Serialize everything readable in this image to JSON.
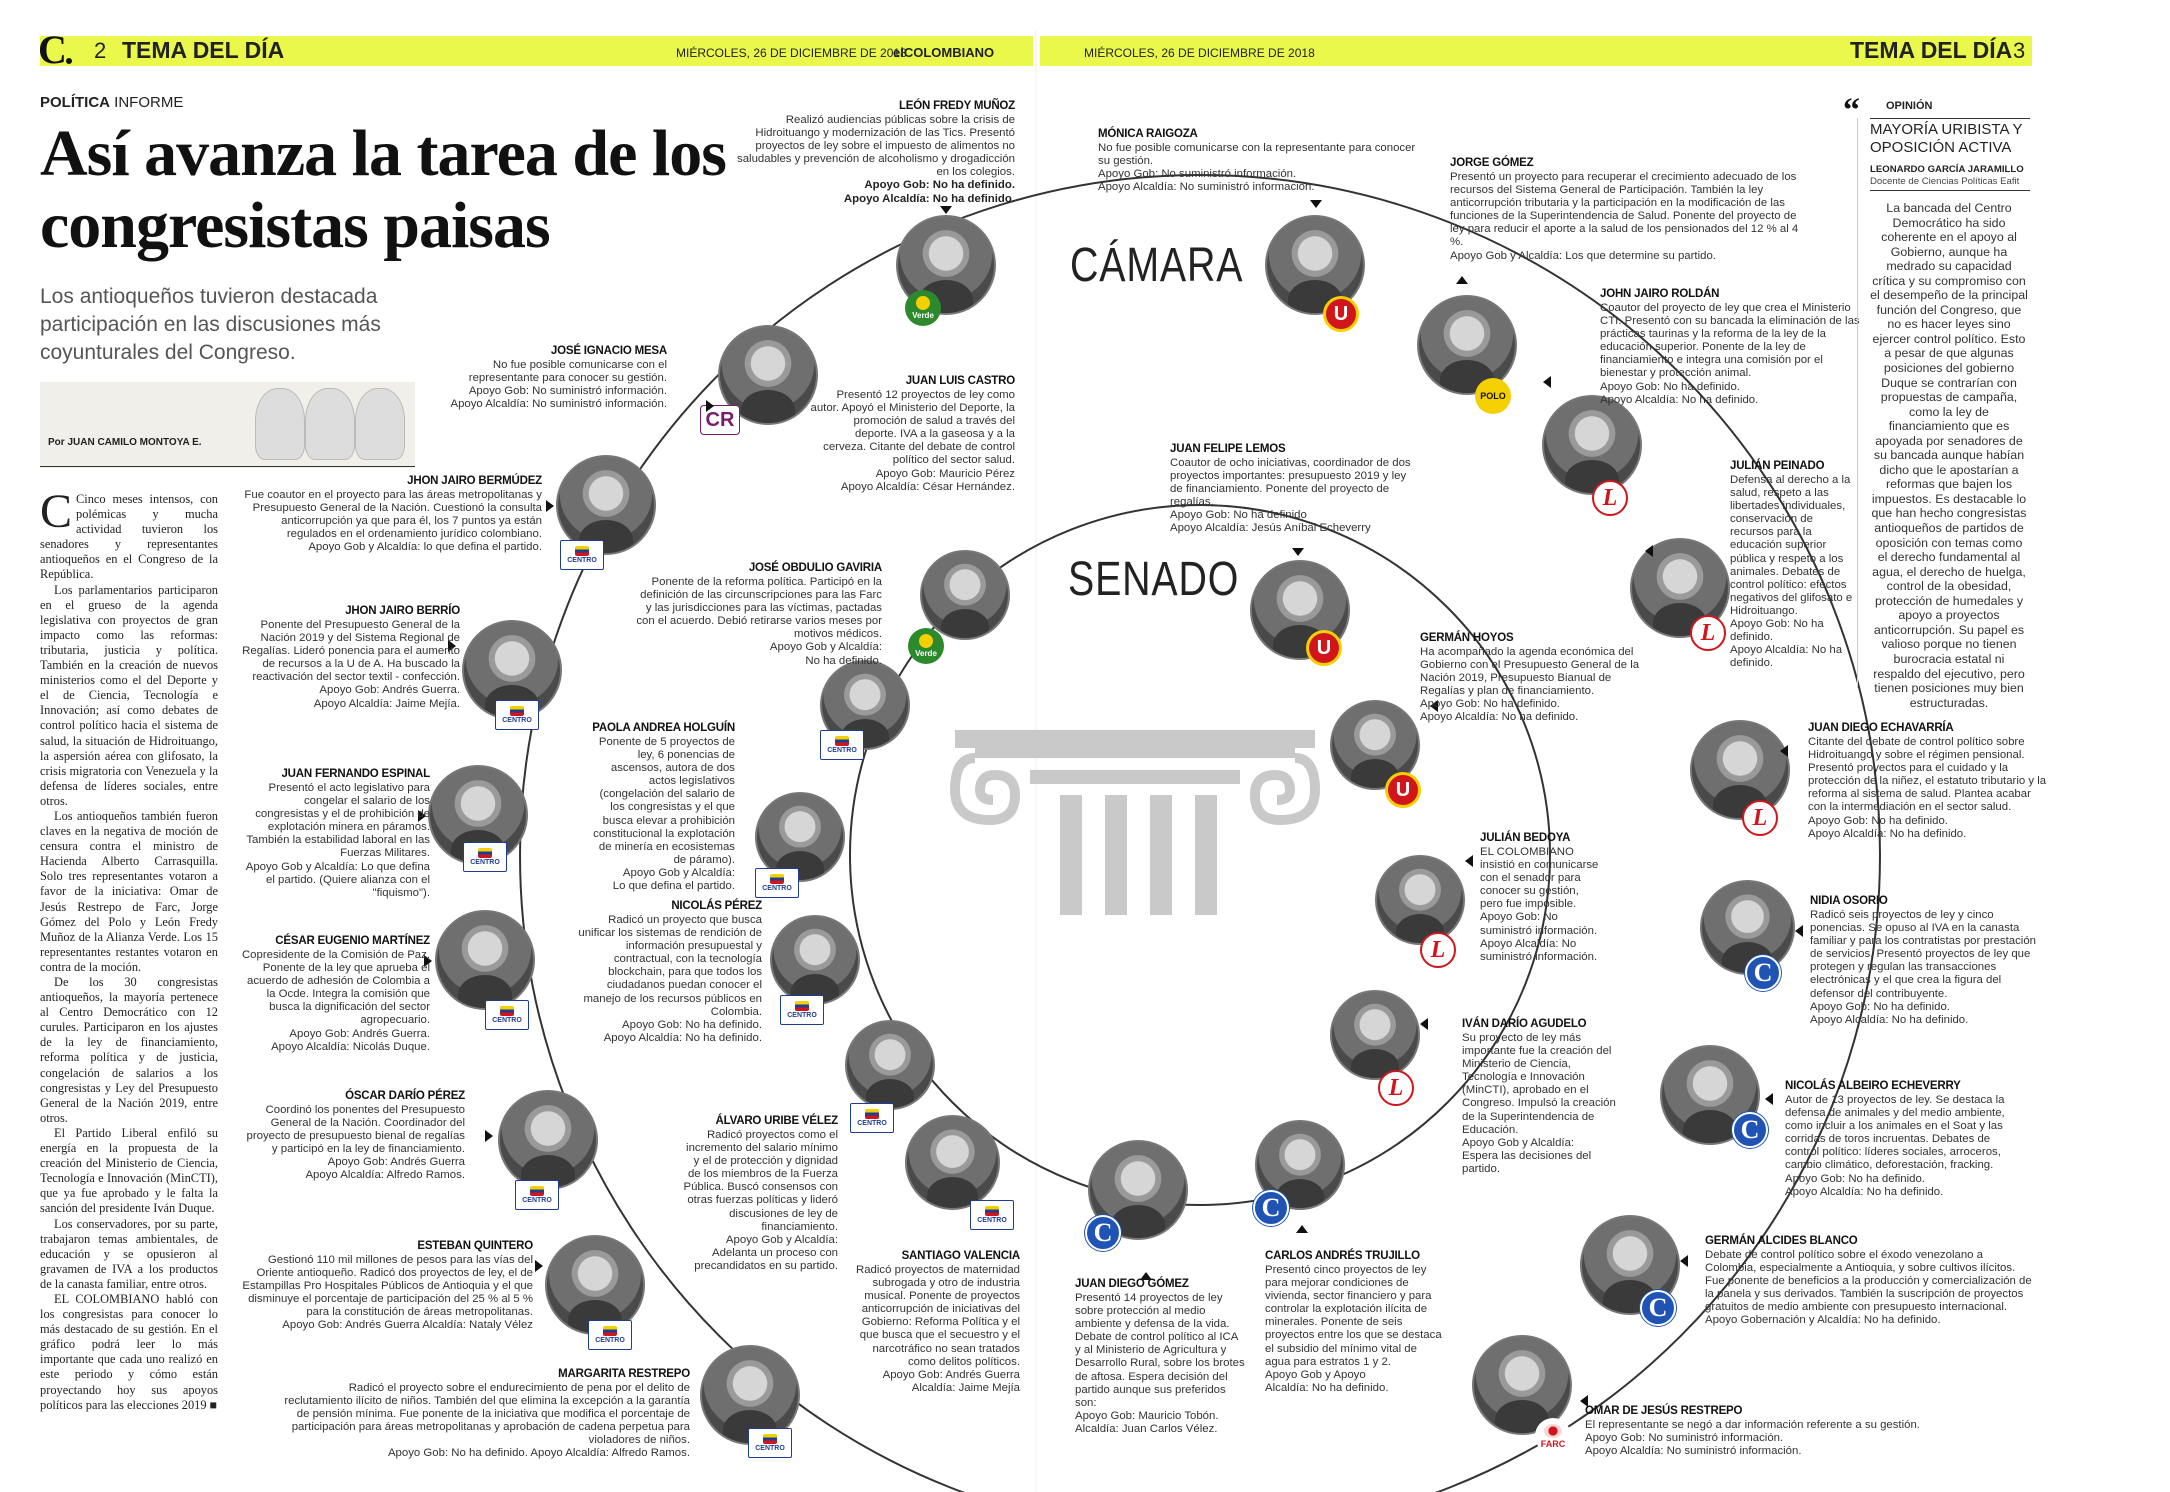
{
  "header": {
    "logo": "C",
    "left_page": "2",
    "left_section": "TEMA DEL DÍA",
    "left_date": "MIÉRCOLES, 26 DE DICIEMBRE DE 2018",
    "brand": "elCOLOMBIANO",
    "right_date": "MIÉRCOLES, 26 DE DICIEMBRE DE 2018",
    "right_section": "TEMA DEL DÍA",
    "right_page": "3"
  },
  "intro": {
    "kicker_section": "POLÍTICA",
    "kicker_type": "INFORME",
    "headline": "Así avanza la tarea de los congresistas paisas",
    "subtitle": "Los antioqueños tuvieron destacada participación en las discusiones más coyunturales del Congreso.",
    "byline": "Por JUAN CAMILO MONTOYA E.",
    "body": [
      "Cinco meses intensos, con polémicas y mucha actividad tuvieron los senadores y representantes antioqueños en el Congreso de la República.",
      "Los parlamentarios participaron en el grueso de la agenda legislativa con proyectos de gran impacto como las reformas: tributaria, justicia y política. También en la creación de nuevos ministerios como el del Deporte y el de Ciencia, Tecnología e Innovación; así como debates de control político hacia el sistema de salud, la situación de Hidroituango, la aspersión aérea con glifosato, la crisis migratoria con Venezuela y la defensa de líderes sociales, entre otros.",
      "Los antioqueños también fueron claves en la negativa de moción de censura contra el ministro de Hacienda Alberto Carrasquilla. Solo tres representantes votaron a favor de la iniciativa: Omar de Jesús Restrepo de Farc, Jorge Gómez del Polo y León Fredy Muñoz de la Alianza Verde. Los 15 representantes restantes votaron en contra de la moción.",
      "De los 30 congresistas antioqueños, la mayoría pertenece al Centro Democrático con 12 curules. Participaron en los ajustes de la ley de financiamiento, reforma política y de justicia, congelación de salarios a los congresistas y Ley del Presupuesto General de la Nación 2019, entre otros.",
      "El Partido Liberal enfiló su energía en la propuesta de la creación del Ministerio de Ciencia, Tecnología e Innovación (MinCTI), que ya fue aprobado y le falta la sanción del presidente Iván Duque.",
      "Los conservadores, por su parte, trabajaron temas ambientales, de educación y se opusieron al gravamen de IVA a los productos de la canasta familiar, entre otros.",
      "EL COLOMBIANO habló con los congresistas para conocer lo más destacado de su gestión. En el gráfico podrá leer lo más importante que cada uno realizó en este periodo y cómo están proyectando hoy sus apoyos políticos para las elecciones 2019 ■"
    ]
  },
  "labels": {
    "camara": "CÁMARA",
    "senado": "SENADO"
  },
  "profiles": [
    {
      "name": "LEÓN FREDY MUÑOZ",
      "desc": "Realizó audiencias públicas sobre la crisis de Hidroituango y modernización de las Tics. Presentó proyectos de ley sobre el impuesto de alimentos no saludables y prevención de alcoholismo y drogadicción en los colegios.",
      "gov": "Apoyo Gob: No ha definido.",
      "alc": "Apoyo Alcaldía: No ha definido.",
      "party": "Verde"
    },
    {
      "name": "MÓNICA RAIGOZA",
      "desc": "No fue posible comunicarse con la representante para conocer su gestión.",
      "gov": "Apoyo Gob: No suministró información.",
      "alc": "Apoyo Alcaldía: No suministró información.",
      "party": "U"
    },
    {
      "name": "JORGE GÓMEZ",
      "desc": "Presentó un proyecto para recuperar el crecimiento adecuado de los recursos del Sistema General de Participación. También la ley anticorrupción tributaria y la participación en la modificación de las funciones de la Superintendencia de Salud. Ponente del proyecto de ley para reducir el aporte a la salud de los pensionados del 12 % al 4 %.",
      "gov": "Apoyo Gob y Alcaldía: Los que determine su partido.",
      "alc": "",
      "party": "POLO"
    },
    {
      "name": "JOSÉ IGNACIO MESA",
      "desc": "No fue posible comunicarse con el representante para conocer su gestión.",
      "gov": "Apoyo Gob: No suministró información.",
      "alc": "Apoyo Alcaldía: No suministró información.",
      "party": "CR"
    },
    {
      "name": "JUAN LUIS CASTRO",
      "desc": "Presentó 12 proyectos de ley como autor. Apoyó el Ministerio del Deporte, la promoción de salud a través del deporte. IVA a la gaseosa y a la cerveza. Citante del debate de control político del sector salud.",
      "gov": "Apoyo Gob: Mauricio Pérez",
      "alc": "Apoyo Alcaldía: César Hernández.",
      "party": "Verde"
    },
    {
      "name": "JOHN JAIRO ROLDÁN",
      "desc": "Coautor del proyecto de ley que crea el Ministerio CTI. Presentó con su bancada la eliminación de las prácticas taurinas y la reforma de la ley de la educación superior. Ponente de la ley de financiamiento e integra una comisión por el bienestar y protección animal.",
      "gov": "Apoyo Gob: No ha definido.",
      "alc": "Apoyo Alcaldía: No ha definido.",
      "party": "L"
    },
    {
      "name": "JHON JAIRO BERMÚDEZ",
      "desc": "Fue coautor en el proyecto para las áreas metropolitanas y Presupuesto General de la Nación. Cuestionó la consulta anticorrupción ya que para él, los 7 puntos ya están regulados en el ordenamiento jurídico colombiano.",
      "gov": "Apoyo Gob y Alcaldía: lo que defina el partido.",
      "alc": "",
      "party": "CENTRO"
    },
    {
      "name": "JUAN FELIPE LEMOS",
      "desc": "Coautor de ocho iniciativas, coordinador de dos proyectos importantes: presupuesto 2019 y ley de financiamiento. Ponente del proyecto de regalías.",
      "gov": "Apoyo Gob: No ha definido",
      "alc": "Apoyo Alcaldía: Jesús Aníbal Echeverry",
      "party": "U"
    },
    {
      "name": "JULIÁN PEINADO",
      "desc": "Defensa al derecho a la salud, respeto a las libertades individuales, conservación de recursos para la educación superior pública y respeto a los animales. Debates de control político: efectos negativos del glifosato e Hidroituango.",
      "gov": "Apoyo Gob: No ha definido.",
      "alc": "Apoyo Alcaldía: No ha definido.",
      "party": "L"
    },
    {
      "name": "JHON JAIRO BERRÍO",
      "desc": "Ponente del Presupuesto General de la Nación 2019 y del Sistema Regional de Regalías. Lideró ponencia para el aumento de recursos a la U de A. Ha buscado la reactivación del sector textil - confección.",
      "gov": "Apoyo Gob: Andrés Guerra.",
      "alc": "Apoyo Alcaldía: Jaime Mejía.",
      "party": "CENTRO"
    },
    {
      "name": "JOSÉ OBDULIO GAVIRIA",
      "desc": "Ponente de la reforma política. Participó en la definición de las circunscripciones para las Farc y las jurisdicciones para las víctimas, pactadas con el acuerdo. Debió retirarse varios meses por motivos médicos.",
      "gov": "Apoyo Gob y Alcaldía:",
      "alc": "No ha definido.",
      "party": "CENTRO"
    },
    {
      "name": "GERMÁN HOYOS",
      "desc": "Ha acompañado la agenda económica del Gobierno con el Presupuesto General de la Nación 2019, Presupuesto Bianual de Regalías y plan de financiamiento.",
      "gov": "Apoyo Gob: No ha definido.",
      "alc": "Apoyo Alcaldía: No ha definido.",
      "party": "U"
    },
    {
      "name": "JUAN DIEGO ECHAVARRÍA",
      "desc": "Citante del debate de control político sobre Hidroituango y sobre el régimen pensional. Presentó proyectos para el cuidado y la protección de la niñez, el estatuto tributario y la reforma al sistema de salud. Plantea acabar con la intermediación en el sector salud.",
      "gov": "Apoyo Gob: No ha definido.",
      "alc": "Apoyo Alcaldía: No ha definido.",
      "party": "L"
    },
    {
      "name": "JUAN FERNANDO ESPINAL",
      "desc": "Presentó el acto legislativo para congelar el salario de los congresistas y el de prohibición de explotación minera en páramos. También la estabilidad laboral en las Fuerzas Militares.",
      "gov": "Apoyo Gob y Alcaldía: Lo que defina el partido. (Quiere alianza con el \"fiquismo\").",
      "alc": "",
      "party": "CENTRO"
    },
    {
      "name": "PAOLA ANDREA HOLGUÍN",
      "desc": "Ponente de 5 proyectos de ley, 6 ponencias de ascensos, autora de dos actos legislativos (congelación del salario de los congresistas y el que busca elevar a prohibición constitucional la explotación de minería en ecosistemas de páramo).",
      "gov": "Apoyo Gob y Alcaldía:",
      "alc": "Lo que defina el partido.",
      "party": "CENTRO"
    },
    {
      "name": "JULIÁN BEDOYA",
      "desc": "EL COLOMBIANO insistió en comunicarse con el senador para conocer su gestión, pero fue imposible.",
      "gov": "Apoyo Gob: No suministró información.",
      "alc": "Apoyo Alcaldía: No suministró información.",
      "party": "L"
    },
    {
      "name": "NIDIA OSORIO",
      "desc": "Radicó seis proyectos de ley y cinco ponencias. Se opuso al IVA en la canasta familiar y para los contratistas por prestación de servicios. Presentó proyectos de ley que protegen y regulan las transacciones electrónicas y el que crea la figura del defensor del contribuyente.",
      "gov": "Apoyo Gob: No ha definido.",
      "alc": "Apoyo Alcaldía: No ha definido.",
      "party": "C"
    },
    {
      "name": "CÉSAR EUGENIO MARTÍNEZ",
      "desc": "Copresidente de la Comisión de Paz. Ponente de la ley que aprueba el acuerdo de adhesión de Colombia a la Ocde. Integra la comisión que busca la dignificación del sector agropecuario.",
      "gov": "Apoyo Gob: Andrés Guerra.",
      "alc": "Apoyo Alcaldía: Nicolás Duque.",
      "party": "CENTRO"
    },
    {
      "name": "NICOLÁS PÉREZ",
      "desc": "Radicó un proyecto que busca unificar los sistemas de rendición de información presupuestal y contractual, con la tecnología blockchain, para que todos los ciudadanos puedan conocer el manejo de los recursos públicos en Colombia.",
      "gov": "Apoyo Gob: No ha definido.",
      "alc": "Apoyo Alcaldía: No ha definido.",
      "party": "CENTRO"
    },
    {
      "name": "IVÁN DARÍO AGUDELO",
      "desc": "Su proyecto de ley más importante fue la creación del Ministerio de Ciencia, Tecnología e Innovación (MinCTI), aprobado en el Congreso. Impulsó la creación de la Superintendencia de Educación.",
      "gov": "Apoyo Gob y Alcaldía:",
      "alc": "Espera las decisiones del partido.",
      "party": "L"
    },
    {
      "name": "NICOLÁS ALBEIRO ECHEVERRY",
      "desc": "Autor de 13 proyectos de ley. Se destaca la defensa de animales y del medio ambiente, como incluir a los animales en el Soat y las corridas de toros incruentas. Debates de control político: líderes sociales, arroceros, cambio climático, deforestación, fracking.",
      "gov": "Apoyo Gob: No ha definido.",
      "alc": "Apoyo Alcaldía: No ha definido.",
      "party": "C"
    },
    {
      "name": "ÁLVARO URIBE VÉLEZ",
      "desc": "Radicó proyectos como el incremento del salario mínimo y el de protección y dignidad de los miembros de la Fuerza Pública. Buscó consensos con otras fuerzas políticas y lideró discusiones de ley de financiamiento.",
      "gov": "Apoyo Gob y Alcaldía:",
      "alc": "Adelanta un proceso con precandidatos en su partido.",
      "party": "CENTRO"
    },
    {
      "name": "ÓSCAR DARÍO PÉREZ",
      "desc": "Coordinó los ponentes del Presupuesto General de la Nación. Coordinador del proyecto de presupuesto bienal de regalías y participó en la ley de financiamiento.",
      "gov": "Apoyo Gob: Andrés Guerra",
      "alc": "Apoyo Alcaldía: Alfredo Ramos.",
      "party": "CENTRO"
    },
    {
      "name": "SANTIAGO VALENCIA",
      "desc": "Radicó proyectos de maternidad subrogada y otro de industria musical. Ponente de proyectos anticorrupción de iniciativas del Gobierno: Reforma Política y el que busca que el secuestro y el narcotráfico no sean tratados como delitos políticos.",
      "gov": "Apoyo Gob: Andrés Guerra",
      "alc": "Alcaldía: Jaime Mejía",
      "party": "CENTRO"
    },
    {
      "name": "JUAN DIEGO GÓMEZ",
      "desc": "Presentó 14 proyectos de ley sobre protección al medio ambiente y defensa de la vida. Debate de control político al ICA y al Ministerio de Agricultura y Desarrollo Rural, sobre los brotes de aftosa. Espera decisión del partido aunque sus preferidos son:",
      "gov": "Apoyo Gob: Mauricio Tobón.",
      "alc": "Alcaldía: Juan Carlos Vélez.",
      "party": "C"
    },
    {
      "name": "CARLOS ANDRÉS TRUJILLO",
      "desc": "Presentó cinco proyectos de ley para mejorar condiciones de vivienda, sector financiero y para controlar la explotación ilícita de minerales. Ponente de seis proyectos entre los que se destaca el subsidio del mínimo vital de agua para estratos 1 y 2.",
      "gov": "Apoyo Gob y Apoyo",
      "alc": "Alcaldía: No ha definido.",
      "party": "C"
    },
    {
      "name": "GERMÁN ALCIDES BLANCO",
      "desc": "Debate de control político sobre el éxodo venezolano a Colombia, especialmente a Antioquia, y sobre cultivos ilícitos. Fue ponente de beneficios a la producción y comercialización de la panela y sus derivados. También la suscripción de proyectos gratuitos de medio ambiente con presupuesto internacional.",
      "gov": "Apoyo Gobernación y Alcaldía: No ha definido.",
      "alc": "",
      "party": "C"
    },
    {
      "name": "ESTEBAN QUINTERO",
      "desc": "Gestionó 110 mil millones de pesos para las vías del Oriente antioqueño. Radicó dos proyectos de ley, el de Estampillas Pro Hospitales Públicos de Antioquia y el que disminuye el porcentaje de participación del 25 % al 5 % para la constitución de áreas metropolitanas.",
      "gov": "Apoyo Gob: Andrés Guerra Alcaldía: Nataly Vélez",
      "alc": "",
      "party": "CENTRO"
    },
    {
      "name": "MARGARITA RESTREPO",
      "desc": "Radicó el proyecto sobre el endurecimiento de pena por el delito de reclutamiento ilícito de niños. También del que elimina la excepción a la garantía de pensión mínima. Fue ponente de la iniciativa que modifica el porcentaje de participación para áreas metropolitanas y aprobación de cadena perpetua para violadores de niños.",
      "gov": "Apoyo Gob: No ha definido. Apoyo Alcaldía: Alfredo Ramos.",
      "alc": "",
      "party": "CENTRO"
    },
    {
      "name": "OMAR DE JESÚS RESTREPO",
      "desc": "El representante se negó a dar información referente a su gestión.",
      "gov": "Apoyo Gob: No suministró información.",
      "alc": "Apoyo Alcaldía: No suministró información.",
      "party": "FARC"
    }
  ],
  "opinion": {
    "kicker": "OPINIÓN",
    "title": "MAYORÍA URIBISTA Y OPOSICIÓN ACTIVA",
    "author": "LEONARDO GARCÍA JARAMILLO",
    "role": "Docente de Ciencias Políticas Eafit",
    "body": "La bancada del Centro Democrático ha sido coherente en el apoyo al Gobierno, aunque ha medrado su capacidad crítica y su compromiso con el desempeño de la principal función del Congreso, que no es hacer leyes sino ejercer control político. Esto a pesar de que algunas posiciones del gobierno Duque se contrarían con propuestas de campaña, como la ley de financiamiento que es apoyada por senadores de su bancada aunque habían dicho que le apostarían a reformas que bajen los impuestos. Es destacable lo que han hecho congresistas antioqueños de partidos de oposición con temas como el derecho fundamental al agua, el derecho de huelga, control de la obesidad, protección de humedales y apoyo a proyectos anticorrupción. Su papel es valioso porque no tienen burocracia estatal ni respaldo del ejecutivo, pero tienen posiciones muy bien estructuradas."
  },
  "colors": {
    "header_bar": "#e9f84b",
    "liberal": "#d0161b",
    "conservador": "#1f54b4",
    "centro": "#1f3e93",
    "verde": "#2c8a2d"
  }
}
